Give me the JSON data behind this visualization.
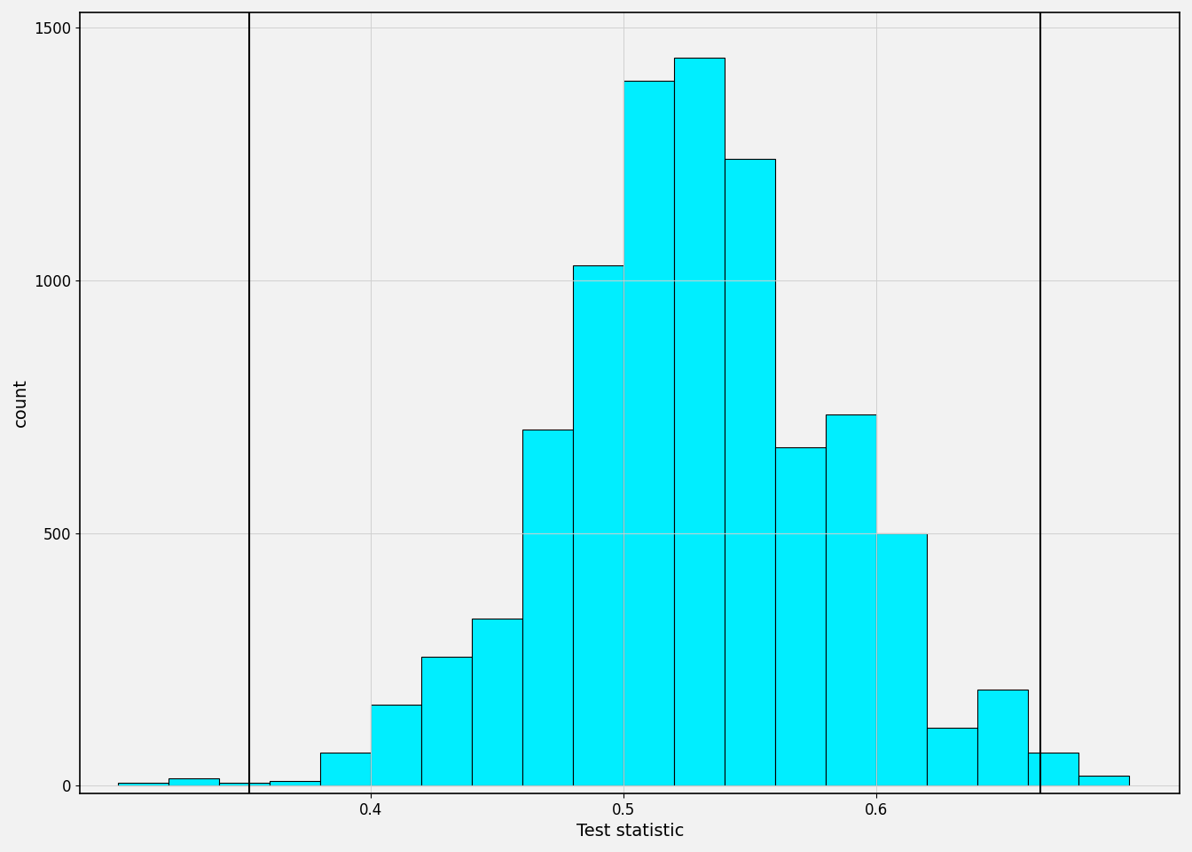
{
  "bar_left_edges": [
    0.3,
    0.32,
    0.34,
    0.36,
    0.38,
    0.4,
    0.42,
    0.44,
    0.46,
    0.48,
    0.5,
    0.52,
    0.54,
    0.56,
    0.58,
    0.6,
    0.62,
    0.64,
    0.66,
    0.68
  ],
  "bar_heights": [
    5,
    15,
    5,
    10,
    65,
    160,
    255,
    330,
    705,
    1030,
    1395,
    1440,
    1240,
    670,
    735,
    500,
    115,
    190,
    65,
    20
  ],
  "bin_width": 0.02,
  "bar_color": "#00EEFF",
  "bar_edge_color": "#000000",
  "vline_positions": [
    0.352,
    0.665
  ],
  "vline_color": "#000000",
  "vline_lw": 1.5,
  "xlabel": "Test statistic",
  "ylabel": "count",
  "xlim": [
    0.285,
    0.72
  ],
  "ylim": [
    -15,
    1530
  ],
  "xticks": [
    0.4,
    0.5,
    0.6
  ],
  "yticks": [
    0,
    500,
    1000,
    1500
  ],
  "grid_color": "#d0d0d0",
  "grid_lw": 0.7,
  "background_color": "#f2f2f2",
  "xlabel_fontsize": 14,
  "ylabel_fontsize": 14,
  "tick_fontsize": 12
}
